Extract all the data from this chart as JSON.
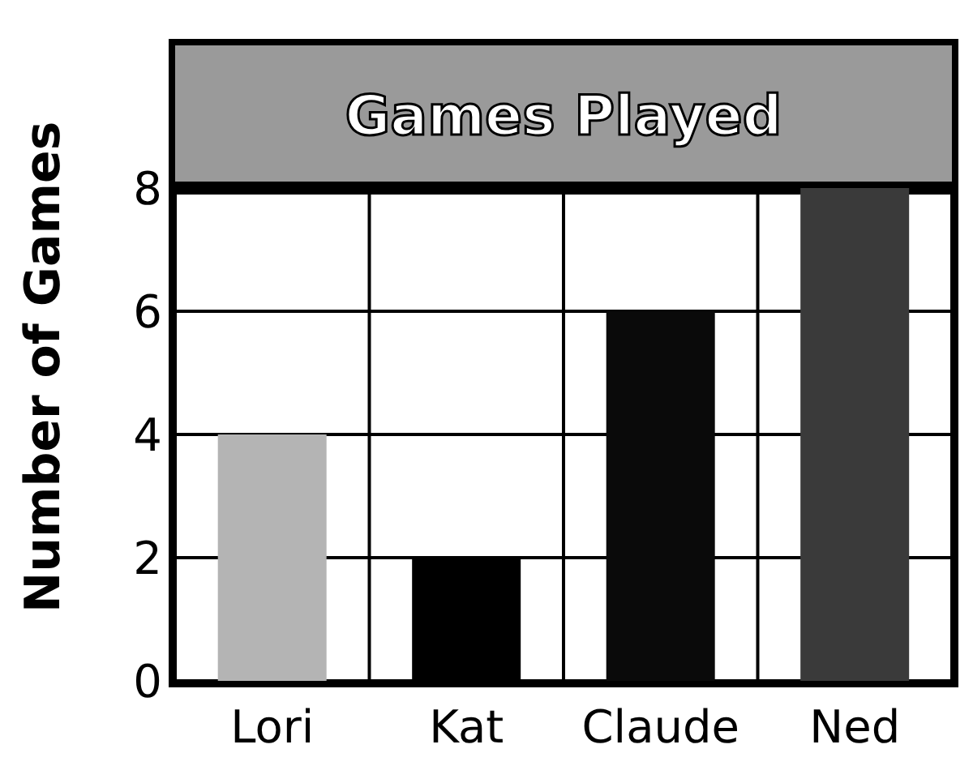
{
  "chart_data": {
    "type": "bar",
    "title": "Games Played",
    "ylabel": "Number of Games",
    "categories": [
      "Lori",
      "Kat",
      "Claude",
      "Ned"
    ],
    "values": [
      4,
      2,
      6,
      8
    ],
    "colors": [
      "#b4b4b4",
      "#000000",
      "#0a0a0a",
      "#3a3a3a"
    ],
    "ylim": [
      0,
      8
    ],
    "yticks": [
      0,
      2,
      4,
      6,
      8
    ],
    "grid": true
  }
}
